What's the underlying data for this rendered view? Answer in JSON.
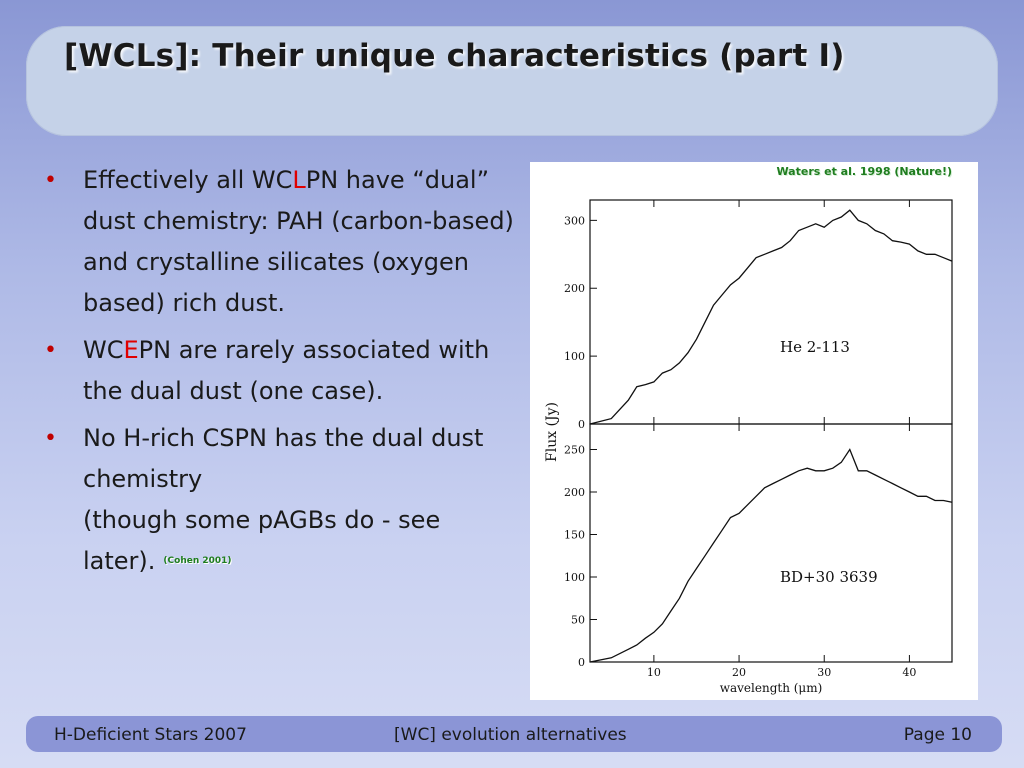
{
  "slide": {
    "title": "[WCLs]: Their unique characteristics (part I)"
  },
  "bullets": [
    {
      "pre": "Effectively all WC",
      "highlight": "L",
      "post": "PN have “dual” dust chemistry: PAH (carbon-based) and crystalline silicates (oxygen based) rich dust.",
      "cite": ""
    },
    {
      "pre": "WC",
      "highlight": "E",
      "post": "PN are rarely associated with the dual dust (one case).",
      "cite": ""
    },
    {
      "pre": "No H-rich CSPN has the dual dust chemistry",
      "highlight": "",
      "post": "(though some pAGBs do - see later).",
      "cite": "(Cohen 2001)"
    }
  ],
  "figure": {
    "citation": "Waters et al. 1998 (Nature!)"
  },
  "chart_data": {
    "type": "line",
    "xlabel": "wavelength (μm)",
    "ylabel": "Flux (Jy)",
    "xlim": [
      2.5,
      45
    ],
    "x_ticks": [
      "10",
      "20",
      "30",
      "40"
    ],
    "panels": [
      {
        "label": "He 2-113",
        "ylim": [
          0,
          330
        ],
        "y_ticks": [
          "0",
          "100",
          "200",
          "300"
        ],
        "x": [
          2.5,
          5,
          7,
          8,
          9,
          10,
          11,
          12,
          13,
          14,
          15,
          16,
          17,
          18,
          19,
          20,
          21,
          22,
          23,
          24,
          25,
          26,
          27,
          28,
          29,
          30,
          31,
          32,
          33,
          34,
          35,
          36,
          37,
          38,
          39,
          40,
          41,
          42,
          43,
          44,
          45
        ],
        "y": [
          0,
          8,
          35,
          55,
          58,
          62,
          75,
          80,
          90,
          105,
          125,
          150,
          175,
          190,
          205,
          215,
          230,
          245,
          250,
          255,
          260,
          270,
          285,
          290,
          295,
          290,
          300,
          305,
          315,
          300,
          295,
          285,
          280,
          270,
          268,
          265,
          255,
          250,
          250,
          245,
          240
        ]
      },
      {
        "label": "BD+30 3639",
        "ylim": [
          0,
          280
        ],
        "y_ticks": [
          "0",
          "50",
          "100",
          "150",
          "200",
          "250"
        ],
        "x": [
          2.5,
          5,
          7,
          8,
          9,
          10,
          11,
          12,
          13,
          14,
          15,
          16,
          17,
          18,
          19,
          20,
          21,
          22,
          23,
          24,
          25,
          26,
          27,
          28,
          29,
          30,
          31,
          32,
          33,
          34,
          35,
          36,
          37,
          38,
          39,
          40,
          41,
          42,
          43,
          44,
          45
        ],
        "y": [
          0,
          5,
          15,
          20,
          28,
          35,
          45,
          60,
          75,
          95,
          110,
          125,
          140,
          155,
          170,
          175,
          185,
          195,
          205,
          210,
          215,
          220,
          225,
          228,
          225,
          225,
          228,
          235,
          250,
          225,
          225,
          220,
          215,
          210,
          205,
          200,
          195,
          195,
          190,
          190,
          188
        ]
      }
    ]
  }
}
